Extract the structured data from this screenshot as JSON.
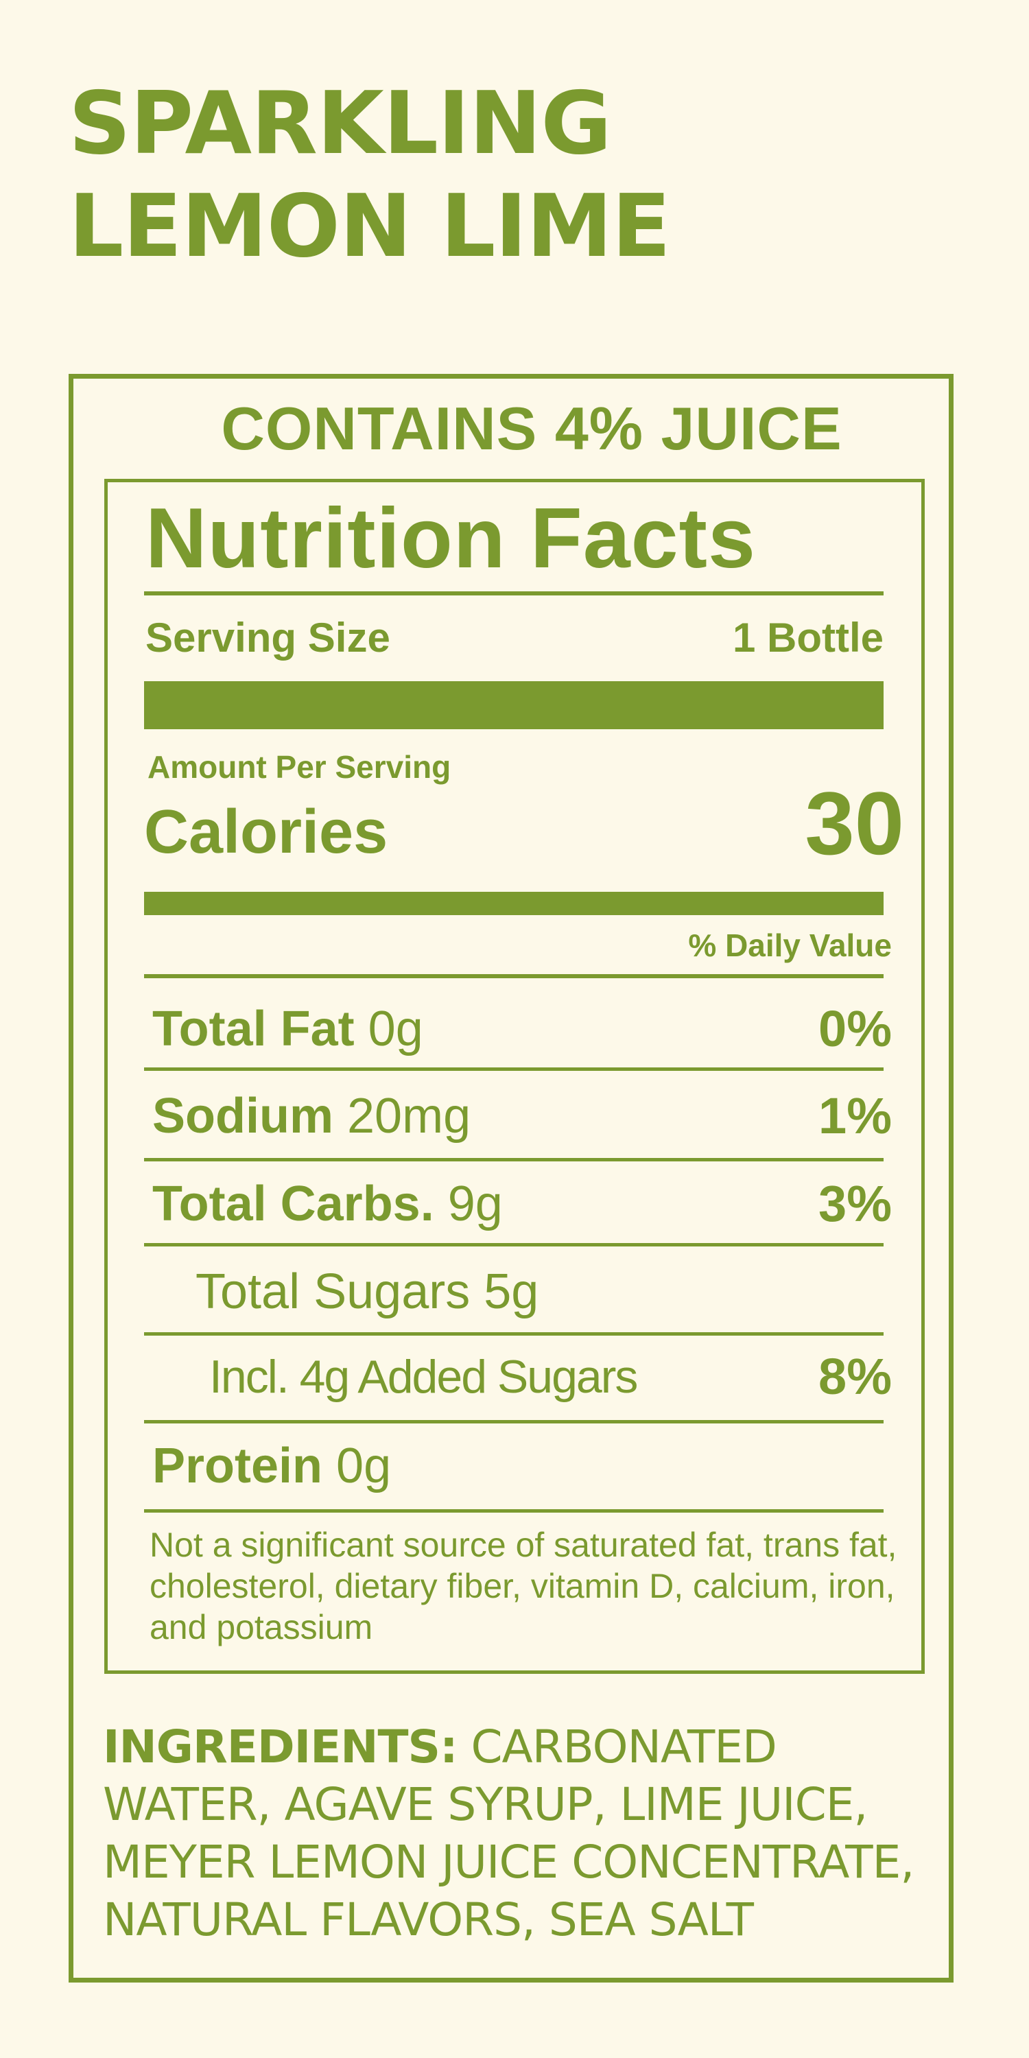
{
  "title": {
    "line1": "SPARKLING",
    "line2": "LEMON LIME"
  },
  "contains": "CONTAINS 4% JUICE",
  "nutrition": {
    "heading": "Nutrition Facts",
    "serving_label": "Serving Size",
    "serving_value": "1 Bottle",
    "amount_per_serving": "Amount Per Serving",
    "calories_label": "Calories",
    "calories_value": "30",
    "daily_value_header": "% Daily Value",
    "rows": [
      {
        "name": "Total Fat",
        "amount": "0g",
        "pct": "0%"
      },
      {
        "name": "Sodium",
        "amount": "20mg",
        "pct": "1%"
      },
      {
        "name": "Total Carbs.",
        "amount": "9g",
        "pct": "3%"
      },
      {
        "name": "Total Sugars 5g",
        "amount": "",
        "pct": ""
      },
      {
        "name": "Incl. 4g Added Sugars",
        "amount": "",
        "pct": "8%"
      },
      {
        "name": "Protein",
        "amount": "0g",
        "pct": ""
      }
    ],
    "footnote": "Not a significant source of saturated fat, trans fat, cholesterol, dietary fiber, vitamin D, calcium, iron, and potassium"
  },
  "ingredients": {
    "label": "INGREDIENTS:",
    "text": "CARBONATED WATER, AGAVE SYRUP, LIME JUICE, MEYER LEMON JUICE CONCENTRATE, NATURAL FLAVORS, SEA SALT"
  },
  "colors": {
    "background": "#fdf9e9",
    "accent": "#7b9a2f"
  }
}
